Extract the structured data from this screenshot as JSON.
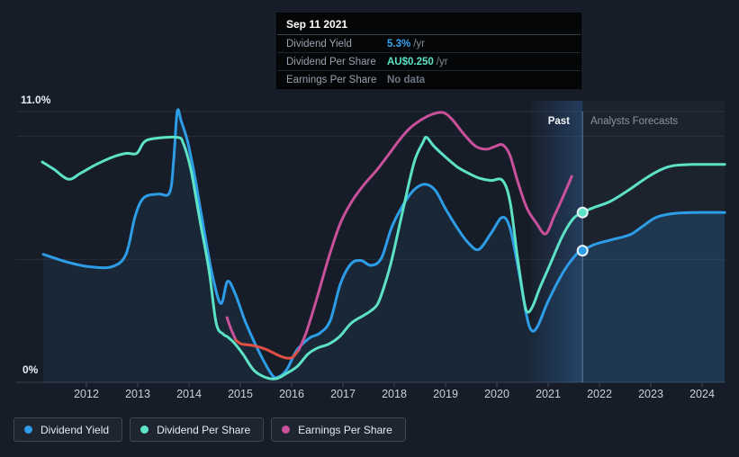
{
  "colors": {
    "background": "#171d28",
    "grid": "#272e3a",
    "axis_line": "#39414e",
    "tick": "#434c5a",
    "tick_text": "#c9d0d9",
    "today_line": "#96b4d7",
    "band_blue": "#4084d6",
    "forecast_bg": "rgba(205,220,250,0.03)",
    "area_past": "rgba(45,130,200,0.10)",
    "area_forecast": "rgba(45,130,200,0.22)",
    "dividend_yield": "#2d9de8",
    "dividend_per_share": "#5de2c6",
    "earnings_per_share": "#c9509a",
    "earnings_negative": "#e25045"
  },
  "tooltip": {
    "title": "Sep 11 2021",
    "rows": [
      {
        "label": "Dividend Yield",
        "value": "5.3%",
        "suffix": "/yr",
        "value_color": "#38a6f2"
      },
      {
        "label": "Dividend Per Share",
        "value": "AU$0.250",
        "suffix": "/yr",
        "value_color": "#5de2c6"
      },
      {
        "label": "Earnings Per Share",
        "value": "No data",
        "suffix": "",
        "value_color": "#6d7683"
      }
    ]
  },
  "axis": {
    "y_top_label": "11.0%",
    "y_bottom_label": "0%"
  },
  "regions": {
    "past_label": "Past",
    "forecasts_label": "Analysts Forecasts"
  },
  "chart_data": {
    "type": "line",
    "title": "Dividend history and forecasts",
    "x_axis": {
      "tick_years": [
        2012,
        2013,
        2014,
        2015,
        2016,
        2017,
        2018,
        2019,
        2020,
        2021,
        2022,
        2023,
        2024
      ],
      "range_years": [
        2011.1,
        2024.45
      ]
    },
    "y_axis": {
      "unit": "%",
      "range": [
        0,
        11.6
      ],
      "gridline_values": [
        0,
        5,
        10,
        11
      ],
      "labeled_gridlines": {
        "11.0%": 11,
        "0%": 0
      },
      "grid": true
    },
    "today": {
      "date": "Sep 11 2021",
      "year": 2021.67,
      "highlight_band_start_year": 2020.67
    },
    "legend_position": "bottom",
    "series": [
      {
        "name": "Dividend Yield",
        "color": "#2d9de8",
        "unit": "%/yr",
        "fill_area": true,
        "points": [
          [
            2011.16,
            5.2
          ],
          [
            2011.6,
            4.9
          ],
          [
            2012.05,
            4.7
          ],
          [
            2012.5,
            4.7
          ],
          [
            2012.77,
            5.2
          ],
          [
            2012.95,
            6.75
          ],
          [
            2013.12,
            7.5
          ],
          [
            2013.4,
            7.65
          ],
          [
            2013.62,
            7.7
          ],
          [
            2013.7,
            9.0
          ],
          [
            2013.77,
            11.0
          ],
          [
            2013.85,
            10.6
          ],
          [
            2013.97,
            9.8
          ],
          [
            2014.1,
            8.5
          ],
          [
            2014.25,
            6.7
          ],
          [
            2014.45,
            4.4
          ],
          [
            2014.62,
            3.2
          ],
          [
            2014.75,
            4.1
          ],
          [
            2014.9,
            3.6
          ],
          [
            2015.1,
            2.45
          ],
          [
            2015.35,
            1.3
          ],
          [
            2015.6,
            0.35
          ],
          [
            2015.72,
            0.2
          ],
          [
            2015.9,
            0.5
          ],
          [
            2016.1,
            1.3
          ],
          [
            2016.35,
            1.8
          ],
          [
            2016.55,
            2.0
          ],
          [
            2016.75,
            2.5
          ],
          [
            2016.95,
            4.0
          ],
          [
            2017.15,
            4.8
          ],
          [
            2017.35,
            4.95
          ],
          [
            2017.55,
            4.75
          ],
          [
            2017.75,
            5.05
          ],
          [
            2017.95,
            6.3
          ],
          [
            2018.2,
            7.3
          ],
          [
            2018.4,
            7.85
          ],
          [
            2018.6,
            8.05
          ],
          [
            2018.8,
            7.8
          ],
          [
            2019.0,
            7.05
          ],
          [
            2019.25,
            6.2
          ],
          [
            2019.45,
            5.65
          ],
          [
            2019.65,
            5.4
          ],
          [
            2019.9,
            6.1
          ],
          [
            2020.1,
            6.7
          ],
          [
            2020.25,
            6.3
          ],
          [
            2020.42,
            4.6
          ],
          [
            2020.58,
            2.7
          ],
          [
            2020.68,
            2.1
          ],
          [
            2020.8,
            2.3
          ],
          [
            2021.0,
            3.3
          ],
          [
            2021.3,
            4.5
          ],
          [
            2021.55,
            5.2
          ],
          [
            2021.67,
            5.35
          ],
          [
            2021.9,
            5.6
          ],
          [
            2022.25,
            5.8
          ],
          [
            2022.6,
            6.0
          ],
          [
            2022.85,
            6.35
          ],
          [
            2023.1,
            6.7
          ],
          [
            2023.4,
            6.85
          ],
          [
            2023.8,
            6.9
          ],
          [
            2024.44,
            6.9
          ]
        ]
      },
      {
        "name": "Dividend Per Share",
        "color": "#5de2c6",
        "unit": "AU$/yr",
        "fill_area": false,
        "points": [
          [
            2011.14,
            8.95
          ],
          [
            2011.37,
            8.65
          ],
          [
            2011.65,
            8.25
          ],
          [
            2011.89,
            8.5
          ],
          [
            2012.19,
            8.85
          ],
          [
            2012.51,
            9.15
          ],
          [
            2012.77,
            9.3
          ],
          [
            2012.98,
            9.3
          ],
          [
            2013.12,
            9.75
          ],
          [
            2013.3,
            9.9
          ],
          [
            2013.77,
            9.95
          ],
          [
            2013.89,
            9.7
          ],
          [
            2014.04,
            8.6
          ],
          [
            2014.21,
            6.6
          ],
          [
            2014.39,
            4.55
          ],
          [
            2014.53,
            2.4
          ],
          [
            2014.67,
            1.95
          ],
          [
            2014.75,
            1.85
          ],
          [
            2014.88,
            1.6
          ],
          [
            2015.05,
            1.15
          ],
          [
            2015.26,
            0.5
          ],
          [
            2015.49,
            0.2
          ],
          [
            2015.7,
            0.15
          ],
          [
            2015.89,
            0.35
          ],
          [
            2016.11,
            0.65
          ],
          [
            2016.32,
            1.15
          ],
          [
            2016.51,
            1.4
          ],
          [
            2016.72,
            1.55
          ],
          [
            2016.93,
            1.85
          ],
          [
            2017.16,
            2.4
          ],
          [
            2017.39,
            2.7
          ],
          [
            2017.54,
            2.9
          ],
          [
            2017.68,
            3.2
          ],
          [
            2017.82,
            4.0
          ],
          [
            2017.96,
            5.05
          ],
          [
            2018.18,
            7.1
          ],
          [
            2018.39,
            8.95
          ],
          [
            2018.56,
            9.75
          ],
          [
            2018.63,
            9.95
          ],
          [
            2018.77,
            9.6
          ],
          [
            2019.0,
            9.15
          ],
          [
            2019.23,
            8.75
          ],
          [
            2019.44,
            8.5
          ],
          [
            2019.65,
            8.3
          ],
          [
            2019.88,
            8.2
          ],
          [
            2020.11,
            8.2
          ],
          [
            2020.26,
            7.3
          ],
          [
            2020.4,
            5.1
          ],
          [
            2020.53,
            3.3
          ],
          [
            2020.6,
            2.85
          ],
          [
            2020.7,
            3.1
          ],
          [
            2020.84,
            3.85
          ],
          [
            2021.05,
            4.85
          ],
          [
            2021.28,
            5.95
          ],
          [
            2021.49,
            6.65
          ],
          [
            2021.67,
            6.9
          ],
          [
            2021.89,
            7.1
          ],
          [
            2022.21,
            7.35
          ],
          [
            2022.56,
            7.8
          ],
          [
            2022.91,
            8.3
          ],
          [
            2023.21,
            8.65
          ],
          [
            2023.44,
            8.8
          ],
          [
            2023.82,
            8.85
          ],
          [
            2024.44,
            8.85
          ]
        ]
      },
      {
        "name": "Earnings Per Share",
        "color": "#c9509a",
        "unit": "AU$/yr",
        "fill_area": false,
        "segments": [
          {
            "color": "#c9509a",
            "points": [
              [
                2014.74,
                2.63
              ],
              [
                2014.82,
                2.16
              ],
              [
                2014.91,
                1.72
              ]
            ]
          },
          {
            "color": "#e25045",
            "points": [
              [
                2014.91,
                1.72
              ],
              [
                2015.02,
                1.56
              ],
              [
                2015.23,
                1.5
              ],
              [
                2015.49,
                1.35
              ],
              [
                2015.72,
                1.12
              ],
              [
                2015.89,
                0.99
              ],
              [
                2016.02,
                1.02
              ],
              [
                2016.14,
                1.32
              ]
            ]
          },
          {
            "color": "#c9509a",
            "points": [
              [
                2016.14,
                1.32
              ],
              [
                2016.28,
                2.0
              ],
              [
                2016.49,
                3.4
              ],
              [
                2016.72,
                5.05
              ],
              [
                2016.95,
                6.47
              ],
              [
                2017.19,
                7.4
              ],
              [
                2017.42,
                8.05
              ],
              [
                2017.65,
                8.6
              ],
              [
                2017.89,
                9.25
              ],
              [
                2018.11,
                9.87
              ],
              [
                2018.32,
                10.35
              ],
              [
                2018.53,
                10.67
              ],
              [
                2018.74,
                10.89
              ],
              [
                2018.95,
                10.96
              ],
              [
                2019.12,
                10.7
              ],
              [
                2019.35,
                10.1
              ],
              [
                2019.58,
                9.6
              ],
              [
                2019.79,
                9.47
              ],
              [
                2019.96,
                9.58
              ],
              [
                2020.11,
                9.65
              ],
              [
                2020.25,
                9.25
              ],
              [
                2020.4,
                8.2
              ],
              [
                2020.58,
                7.1
              ],
              [
                2020.77,
                6.47
              ],
              [
                2020.95,
                6.03
              ],
              [
                2021.12,
                6.76
              ],
              [
                2021.32,
                7.68
              ],
              [
                2021.46,
                8.37
              ]
            ]
          }
        ]
      }
    ],
    "markers": [
      {
        "series": "Dividend Yield",
        "year": 2021.67,
        "value": 5.35,
        "color": "#2d9de8"
      },
      {
        "series": "Dividend Per Share",
        "year": 2021.67,
        "value": 6.9,
        "color": "#5de2c6"
      }
    ]
  }
}
